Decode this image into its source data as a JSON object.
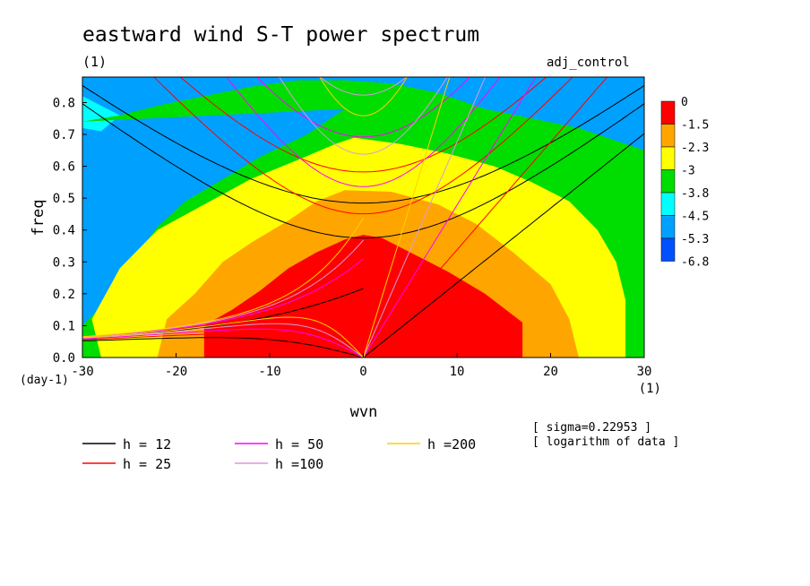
{
  "header": {
    "title": "eastward wind S-T power spectrum",
    "units_label": "(1)",
    "experiment": "adj_control"
  },
  "notes": {
    "sigma": "[ sigma=0.22953 ]",
    "scale": "[ logarithm of data ]"
  },
  "chart_data": {
    "type": "heatmap",
    "title": "eastward wind S-T power spectrum",
    "xlabel": "wvn",
    "xunit": "(1)",
    "ylabel": "freq",
    "yunit": "(day-1)",
    "xlim": [
      -30,
      30
    ],
    "ylim": [
      0,
      0.88
    ],
    "x_ticks": [
      "-30",
      "-20",
      "-10",
      "0",
      "10",
      "20",
      "30"
    ],
    "y_ticks": [
      "0.0",
      "0.1",
      "0.2",
      "0.3",
      "0.4",
      "0.5",
      "0.6",
      "0.7",
      "0.8"
    ],
    "colorbar": {
      "labels": [
        "0",
        "-1.5",
        "-2.3",
        "-3",
        "-3.8",
        "-4.5",
        "-5.3",
        "-6.8"
      ],
      "colors": [
        "#ff0000",
        "#ffa500",
        "#ffff00",
        "#00dd00",
        "#00ffff",
        "#00a0ff",
        "#0050ff"
      ]
    },
    "contours": [
      {
        "level": -1.5,
        "color": "#ff0000",
        "points": [
          [
            0,
            0.385
          ],
          [
            2,
            0.375
          ],
          [
            5,
            0.33
          ],
          [
            9,
            0.27
          ],
          [
            13,
            0.2
          ],
          [
            17,
            0.11
          ],
          [
            17,
            0.0
          ],
          [
            -17,
            0.0
          ],
          [
            -17,
            0.1
          ],
          [
            -14,
            0.15
          ],
          [
            -11,
            0.21
          ],
          [
            -8,
            0.28
          ],
          [
            -5,
            0.33
          ],
          [
            -2,
            0.37
          ]
        ]
      },
      {
        "level": -2.3,
        "color": "#ffa500",
        "points": [
          [
            -2,
            0.525
          ],
          [
            3,
            0.52
          ],
          [
            8,
            0.48
          ],
          [
            12,
            0.42
          ],
          [
            16,
            0.33
          ],
          [
            20,
            0.23
          ],
          [
            22,
            0.12
          ],
          [
            23,
            0.0
          ],
          [
            -22,
            0.0
          ],
          [
            -21,
            0.12
          ],
          [
            -18,
            0.2
          ],
          [
            -15,
            0.3
          ],
          [
            -12,
            0.36
          ],
          [
            -8,
            0.43
          ],
          [
            -5,
            0.49
          ]
        ]
      },
      {
        "level": -3,
        "color": "#ffff00",
        "points": [
          [
            -1,
            0.69
          ],
          [
            4,
            0.67
          ],
          [
            9,
            0.64
          ],
          [
            14,
            0.6
          ],
          [
            18,
            0.55
          ],
          [
            22,
            0.49
          ],
          [
            25,
            0.4
          ],
          [
            27,
            0.3
          ],
          [
            28,
            0.18
          ],
          [
            28,
            0.0
          ],
          [
            -28,
            0.0
          ],
          [
            -29,
            0.12
          ],
          [
            -26,
            0.28
          ],
          [
            -22,
            0.4
          ],
          [
            -17,
            0.48
          ],
          [
            -12,
            0.56
          ],
          [
            -7,
            0.62
          ],
          [
            -3,
            0.67
          ]
        ]
      },
      {
        "level": -3.8,
        "color": "#00dd00",
        "points": [
          [
            -30,
            0.74
          ],
          [
            -26,
            0.76
          ],
          [
            -22,
            0.79
          ],
          [
            -17,
            0.82
          ],
          [
            -12,
            0.85
          ],
          [
            -7,
            0.87
          ],
          [
            -2,
            0.87
          ],
          [
            3,
            0.86
          ],
          [
            8,
            0.83
          ],
          [
            13,
            0.78
          ],
          [
            18,
            0.75
          ],
          [
            23,
            0.72
          ],
          [
            27,
            0.68
          ],
          [
            30,
            0.65
          ],
          [
            30,
            0.0
          ],
          [
            -30,
            0.0
          ],
          [
            -30,
            0.1
          ],
          [
            -28,
            0.16
          ],
          [
            -26,
            0.24
          ],
          [
            -24,
            0.33
          ],
          [
            -22,
            0.41
          ],
          [
            -19,
            0.49
          ],
          [
            -15,
            0.56
          ],
          [
            -11,
            0.63
          ],
          [
            -6,
            0.7
          ],
          [
            -2,
            0.78
          ]
        ]
      },
      {
        "level": -4.5,
        "color": "#00ffff",
        "points": [
          [
            -30,
            0.72
          ],
          [
            -28,
            0.71
          ],
          [
            -26,
            0.76
          ],
          [
            -30,
            0.82
          ]
        ]
      }
    ],
    "dispersion_curves": [
      {
        "label": "h = 12",
        "color": "#000000"
      },
      {
        "label": "h = 25",
        "color": "#ff0000"
      },
      {
        "label": "h = 50",
        "color": "#ff00ff"
      },
      {
        "label": "h =100",
        "color": "#dd99dd"
      },
      {
        "label": "h =200",
        "color": "#ffd000"
      }
    ],
    "equivalent_depths": [
      12,
      25,
      50,
      100,
      200
    ],
    "legend": "bottom"
  }
}
